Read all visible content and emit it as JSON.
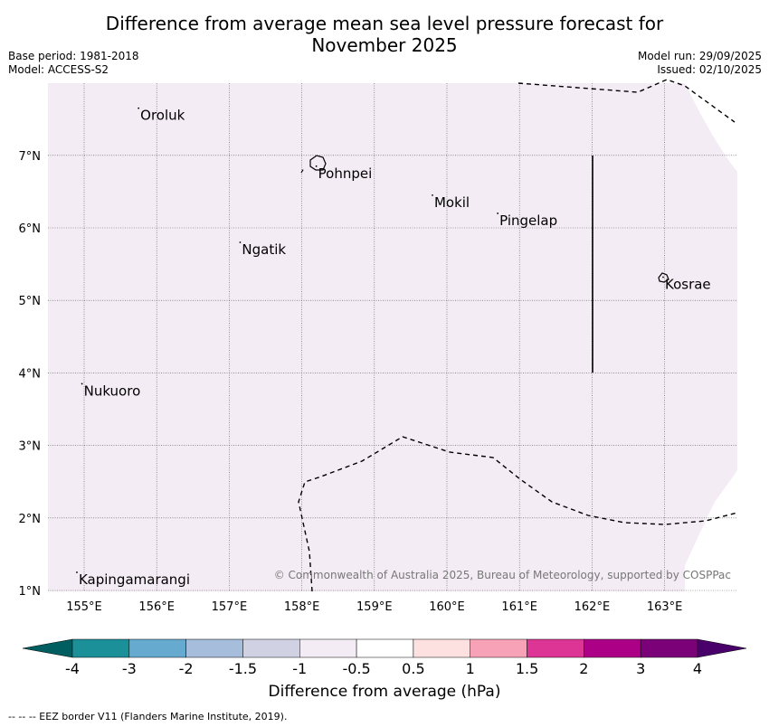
{
  "header": {
    "title_line1": "Difference from average mean sea level pressure forecast for",
    "title_line2": "November 2025",
    "base_period": "Base period: 1981-2018",
    "model": "Model: ACCESS-S2",
    "model_run": "Model run: 29/09/2025",
    "issued": "Issued: 02/10/2025"
  },
  "map": {
    "lon_ticks": [
      155,
      156,
      157,
      158,
      159,
      160,
      161,
      162,
      163
    ],
    "lat_ticks": [
      1,
      2,
      3,
      4,
      5,
      6,
      7
    ],
    "lon_labels": [
      "155°E",
      "156°E",
      "157°E",
      "158°E",
      "159°E",
      "160°E",
      "161°E",
      "162°E",
      "163°E"
    ],
    "lat_labels": [
      "1°N",
      "2°N",
      "3°N",
      "4°N",
      "5°N",
      "6°N",
      "7°N"
    ],
    "fill_color": "#f4ecf4",
    "places": [
      {
        "name": "Oroluk",
        "lon": 155.75,
        "lat": 7.65
      },
      {
        "name": "Pohnpei",
        "lon": 158.2,
        "lat": 6.85
      },
      {
        "name": "Mokil",
        "lon": 159.8,
        "lat": 6.45
      },
      {
        "name": "Pingelap",
        "lon": 160.7,
        "lat": 6.2
      },
      {
        "name": "Ngatik",
        "lon": 157.15,
        "lat": 5.8
      },
      {
        "name": "Kosrae",
        "lon": 162.98,
        "lat": 5.32
      },
      {
        "name": "Nukuoro",
        "lon": 154.97,
        "lat": 3.85
      },
      {
        "name": "Kapingamarangi",
        "lon": 154.9,
        "lat": 1.25
      }
    ],
    "copyright": "© Commonwealth of Australia 2025, Bureau of Meteorology, supported by COSPPac"
  },
  "colorbar": {
    "labels": [
      "-4",
      "-3",
      "-2",
      "-1.5",
      "-1",
      "-0.5",
      "0.5",
      "1",
      "1.5",
      "2",
      "3",
      "4"
    ],
    "colors": [
      "#1b9098",
      "#66aacf",
      "#a6bedc",
      "#d0d2e4",
      "#f4ecf4",
      "#ffffff",
      "#fde0e0",
      "#f8a2b8",
      "#dd3596",
      "#ac0187",
      "#7b0178"
    ],
    "low_extend": "#015e60",
    "high_extend": "#49006a",
    "label": "Difference from average (hPa)"
  },
  "footer": "--  --  -- EEZ border V11 (Flanders Marine Institute, 2019)."
}
